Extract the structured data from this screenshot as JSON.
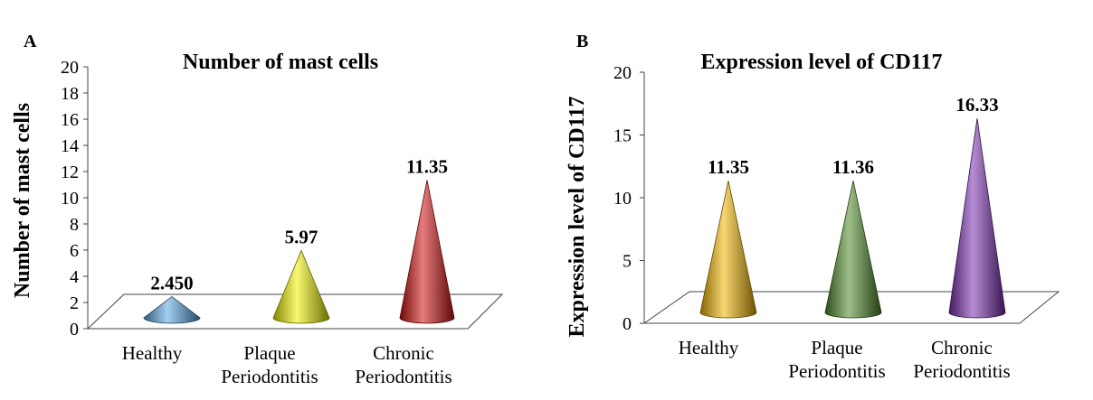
{
  "chart_data": [
    {
      "panel": "A",
      "type": "bar",
      "title": "Number of mast cells",
      "ylabel": "Number of mast cells",
      "xlabel": "",
      "ylim": [
        0,
        20
      ],
      "yticks": [
        "0",
        "2",
        "4",
        "6",
        "8",
        "10",
        "12",
        "14",
        "16",
        "18",
        "20"
      ],
      "categories": [
        [
          "Healthy"
        ],
        [
          "Plaque",
          "Periodontitis"
        ],
        [
          "Chronic",
          "Periodontitis"
        ]
      ],
      "values": [
        2.45,
        5.97,
        11.35
      ],
      "data_labels": [
        "2.450",
        "5.97",
        "11.35"
      ],
      "colors": [
        "#5aa7e6",
        "#f2f200",
        "#d01010"
      ],
      "grid": false,
      "legend": "none"
    },
    {
      "panel": "B",
      "type": "bar",
      "title": "Expression level of CD117",
      "ylabel": "Expression level of CD117",
      "xlabel": "",
      "ylim": [
        0,
        20
      ],
      "yticks": [
        "0",
        "5",
        "10",
        "15",
        "20"
      ],
      "categories": [
        [
          "Healthy"
        ],
        [
          "Plaque",
          "Periodontitis"
        ],
        [
          "Chronic",
          "Periodontitis"
        ]
      ],
      "values": [
        11.35,
        11.36,
        16.33
      ],
      "data_labels": [
        "11.35",
        "11.36",
        "16.33"
      ],
      "colors": [
        "#f2b400",
        "#4f8a2a",
        "#7b2fb0"
      ],
      "grid": false,
      "legend": "none"
    }
  ]
}
